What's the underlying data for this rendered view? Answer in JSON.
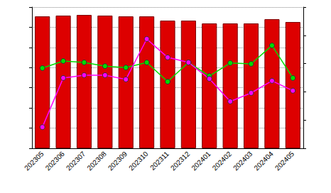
{
  "chart_data": {
    "type": "bar",
    "categories": [
      "202305",
      "202306",
      "202307",
      "202308",
      "202309",
      "202310",
      "202311",
      "202312",
      "202401",
      "202402",
      "202403",
      "202404",
      "202405"
    ],
    "series": [
      {
        "type": "bar",
        "color": "#dd0000",
        "values": [
          6.54,
          6.58,
          6.61,
          6.58,
          6.54,
          6.54,
          6.33,
          6.33,
          6.19,
          6.19,
          6.19,
          6.4,
          6.26
        ]
      },
      {
        "type": "line",
        "axis": "y2",
        "color": "#00dd00",
        "marker": "circle",
        "values": [
          2.84,
          3.09,
          3.04,
          2.91,
          2.86,
          3.04,
          2.36,
          3.04,
          2.56,
          3.02,
          2.99,
          3.64,
          2.49
        ]
      },
      {
        "type": "line",
        "axis": "y2",
        "color": "#ff00ff",
        "marker": "circle",
        "values": [
          0.75,
          2.49,
          2.59,
          2.59,
          2.44,
          3.87,
          3.22,
          3.04,
          2.46,
          1.66,
          1.96,
          2.39,
          2.04
        ]
      }
    ],
    "ylim": [
      0,
      7
    ],
    "yticks": [
      0,
      1,
      2,
      3,
      4,
      5,
      6,
      7
    ],
    "y2lim": [
      0,
      5
    ],
    "y2ticks": [
      0,
      1,
      2,
      3,
      4,
      5
    ],
    "grid": true,
    "tick_labels": "x"
  }
}
